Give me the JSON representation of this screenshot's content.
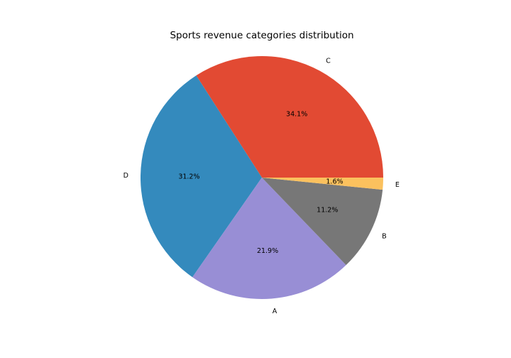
{
  "chart_data": {
    "type": "pie",
    "title": "Sports revenue categories distribution",
    "slices": [
      {
        "label": "C",
        "value": 34.1,
        "pct_label": "34.1%",
        "color": "#E24A33"
      },
      {
        "label": "D",
        "value": 31.2,
        "pct_label": "31.2%",
        "color": "#348ABD"
      },
      {
        "label": "A",
        "value": 21.9,
        "pct_label": "21.9%",
        "color": "#988ED5"
      },
      {
        "label": "B",
        "value": 11.2,
        "pct_label": "11.2%",
        "color": "#777777"
      },
      {
        "label": "E",
        "value": 1.6,
        "pct_label": "1.6%",
        "color": "#FBC15E"
      }
    ],
    "start_angle_deg": 0,
    "direction": "counterclockwise",
    "legend": "none"
  }
}
